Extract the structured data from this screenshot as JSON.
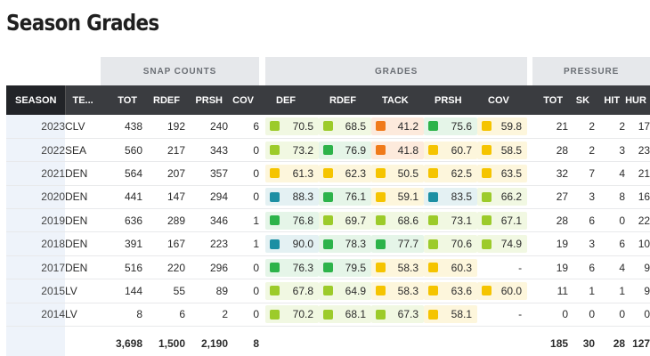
{
  "page": {
    "title": "Season Grades"
  },
  "groups": {
    "snap_counts": "SNAP COUNTS",
    "grades": "GRADES",
    "pressure": "PRESSURE"
  },
  "columns": [
    "SEASON",
    "TE...",
    "TOT",
    "RDEF",
    "PRSH",
    "COV",
    "DEF",
    "RDEF",
    "TACK",
    "PRSH",
    "COV",
    "TOT",
    "SK",
    "HIT",
    "HUR"
  ],
  "grade_colors": {
    "blue": "#1c8fa3",
    "dark_green": "#2db34a",
    "light_green": "#9ccb2a",
    "yellow": "#f5c400",
    "orange": "#f07a1a"
  },
  "grade_backgrounds": {
    "blue": "#e4f1f3",
    "dark_green": "#e5f5e8",
    "light_green": "#f1f8e2",
    "yellow": "#fdf6dc",
    "orange": "#fdeadc"
  },
  "rows": [
    {
      "season": "2023",
      "team": "CLV",
      "tot": "438",
      "rdef": "192",
      "prsh": "240",
      "cov": "6",
      "grades": [
        {
          "v": "70.5",
          "c": "light_green"
        },
        {
          "v": "68.5",
          "c": "light_green"
        },
        {
          "v": "41.2",
          "c": "orange"
        },
        {
          "v": "75.6",
          "c": "dark_green"
        },
        {
          "v": "59.8",
          "c": "yellow"
        }
      ],
      "p_tot": "21",
      "sk": "2",
      "hit": "2",
      "hur": "17"
    },
    {
      "season": "2022",
      "team": "SEA",
      "tot": "560",
      "rdef": "217",
      "prsh": "343",
      "cov": "0",
      "grades": [
        {
          "v": "73.2",
          "c": "light_green"
        },
        {
          "v": "76.9",
          "c": "dark_green"
        },
        {
          "v": "41.8",
          "c": "orange"
        },
        {
          "v": "60.7",
          "c": "yellow"
        },
        {
          "v": "58.5",
          "c": "yellow"
        }
      ],
      "p_tot": "28",
      "sk": "2",
      "hit": "3",
      "hur": "23"
    },
    {
      "season": "2021",
      "team": "DEN",
      "tot": "564",
      "rdef": "207",
      "prsh": "357",
      "cov": "0",
      "grades": [
        {
          "v": "61.3",
          "c": "yellow"
        },
        {
          "v": "62.3",
          "c": "yellow"
        },
        {
          "v": "50.5",
          "c": "yellow"
        },
        {
          "v": "62.5",
          "c": "yellow"
        },
        {
          "v": "63.5",
          "c": "yellow"
        }
      ],
      "p_tot": "32",
      "sk": "7",
      "hit": "4",
      "hur": "21"
    },
    {
      "season": "2020",
      "team": "DEN",
      "tot": "441",
      "rdef": "147",
      "prsh": "294",
      "cov": "0",
      "grades": [
        {
          "v": "88.3",
          "c": "blue"
        },
        {
          "v": "76.1",
          "c": "dark_green"
        },
        {
          "v": "59.1",
          "c": "yellow"
        },
        {
          "v": "83.5",
          "c": "blue"
        },
        {
          "v": "66.2",
          "c": "light_green"
        }
      ],
      "p_tot": "27",
      "sk": "3",
      "hit": "8",
      "hur": "16"
    },
    {
      "season": "2019",
      "team": "DEN",
      "tot": "636",
      "rdef": "289",
      "prsh": "346",
      "cov": "1",
      "grades": [
        {
          "v": "76.8",
          "c": "dark_green"
        },
        {
          "v": "69.7",
          "c": "light_green"
        },
        {
          "v": "68.6",
          "c": "light_green"
        },
        {
          "v": "73.1",
          "c": "light_green"
        },
        {
          "v": "67.1",
          "c": "light_green"
        }
      ],
      "p_tot": "28",
      "sk": "6",
      "hit": "0",
      "hur": "22"
    },
    {
      "season": "2018",
      "team": "DEN",
      "tot": "391",
      "rdef": "167",
      "prsh": "223",
      "cov": "1",
      "grades": [
        {
          "v": "90.0",
          "c": "blue"
        },
        {
          "v": "78.3",
          "c": "dark_green"
        },
        {
          "v": "77.7",
          "c": "dark_green"
        },
        {
          "v": "70.6",
          "c": "light_green"
        },
        {
          "v": "74.9",
          "c": "light_green"
        }
      ],
      "p_tot": "19",
      "sk": "3",
      "hit": "6",
      "hur": "10"
    },
    {
      "season": "2017",
      "team": "DEN",
      "tot": "516",
      "rdef": "220",
      "prsh": "296",
      "cov": "0",
      "grades": [
        {
          "v": "76.3",
          "c": "dark_green"
        },
        {
          "v": "79.5",
          "c": "dark_green"
        },
        {
          "v": "58.3",
          "c": "yellow"
        },
        {
          "v": "60.3",
          "c": "yellow"
        },
        {
          "v": "-",
          "c": ""
        }
      ],
      "p_tot": "19",
      "sk": "6",
      "hit": "4",
      "hur": "9"
    },
    {
      "season": "2015",
      "team": "LV",
      "tot": "144",
      "rdef": "55",
      "prsh": "89",
      "cov": "0",
      "grades": [
        {
          "v": "67.8",
          "c": "light_green"
        },
        {
          "v": "64.9",
          "c": "light_green"
        },
        {
          "v": "58.3",
          "c": "yellow"
        },
        {
          "v": "63.6",
          "c": "yellow"
        },
        {
          "v": "60.0",
          "c": "yellow"
        }
      ],
      "p_tot": "11",
      "sk": "1",
      "hit": "1",
      "hur": "9"
    },
    {
      "season": "2014",
      "team": "LV",
      "tot": "8",
      "rdef": "6",
      "prsh": "2",
      "cov": "0",
      "grades": [
        {
          "v": "70.2",
          "c": "light_green"
        },
        {
          "v": "68.1",
          "c": "light_green"
        },
        {
          "v": "67.3",
          "c": "light_green"
        },
        {
          "v": "58.1",
          "c": "yellow"
        },
        {
          "v": "-",
          "c": ""
        }
      ],
      "p_tot": "0",
      "sk": "0",
      "hit": "0",
      "hur": "0"
    }
  ],
  "totals": {
    "tot": "3,698",
    "rdef": "1,500",
    "prsh": "2,190",
    "cov": "8",
    "p_tot": "185",
    "sk": "30",
    "hit": "28",
    "hur": "127"
  }
}
